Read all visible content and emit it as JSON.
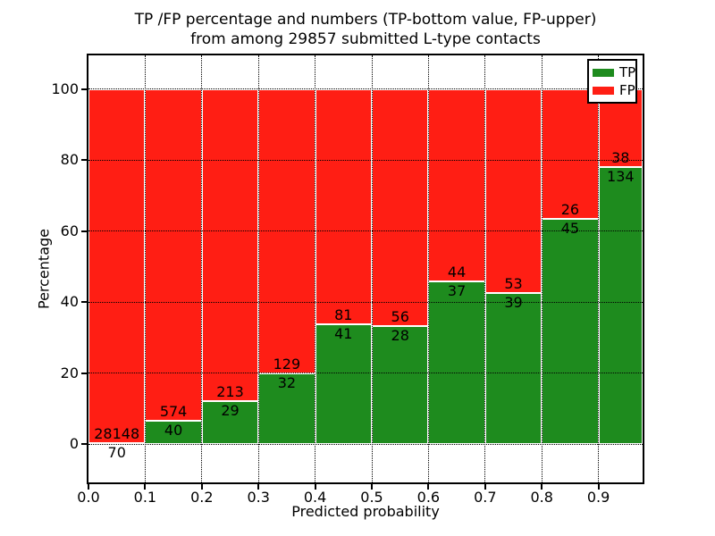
{
  "chart_data": {
    "type": "bar",
    "stacked": true,
    "orientation": "vertical",
    "title_lines": [
      "TP /FP percentage and numbers (TP-bottom value, FP-upper)",
      "from among 29857 submitted L-type contacts"
    ],
    "xlabel": "Predicted probability",
    "ylabel": "Percentage",
    "total_submitted": 29857,
    "bin_edges": [
      0.0,
      0.1,
      0.2,
      0.3,
      0.4,
      0.5,
      0.6,
      0.7,
      0.8,
      0.9,
      1.0
    ],
    "bar_bin_width": 0.1,
    "x_tick_labels": [
      "0.0",
      "0.1",
      "0.2",
      "0.3",
      "0.4",
      "0.5",
      "0.6",
      "0.7",
      "0.8",
      "0.9"
    ],
    "y_ticks": [
      0,
      20,
      40,
      60,
      80,
      100
    ],
    "xlim": [
      0.0,
      0.978
    ],
    "ylim": [
      -10.8,
      109.5
    ],
    "grid": "dotted",
    "series": [
      {
        "name": "TP",
        "color": "#1e8b1e",
        "counts": [
          70,
          40,
          29,
          32,
          41,
          28,
          37,
          39,
          45,
          134
        ]
      },
      {
        "name": "FP",
        "color": "#ff1e14",
        "counts": [
          28148,
          574,
          213,
          129,
          81,
          56,
          44,
          53,
          26,
          38
        ]
      }
    ],
    "tp_percentages": [
      0.25,
      6.51,
      11.98,
      19.88,
      33.61,
      33.33,
      45.68,
      42.39,
      63.38,
      77.91
    ],
    "legend": {
      "position": "upper right",
      "entries": [
        {
          "label": "TP",
          "color": "#1e8b1e"
        },
        {
          "label": "FP",
          "color": "#ff1e14"
        }
      ]
    }
  }
}
